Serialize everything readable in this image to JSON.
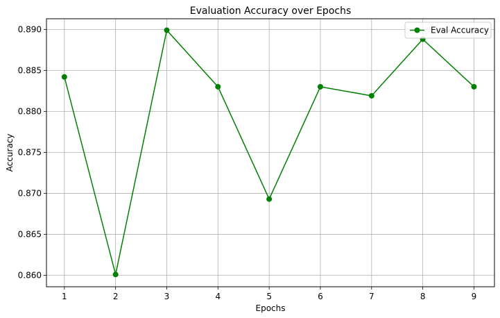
{
  "chart_data": {
    "type": "line",
    "title": "Evaluation Accuracy over Epochs",
    "xlabel": "Epochs",
    "ylabel": "Accuracy",
    "x": [
      1,
      2,
      3,
      4,
      5,
      6,
      7,
      8,
      9
    ],
    "xlim": [
      0.65,
      9.4
    ],
    "ylim": [
      0.8586,
      0.8913
    ],
    "xticks": [
      1,
      2,
      3,
      4,
      5,
      6,
      7,
      8,
      9
    ],
    "yticks": [
      0.86,
      0.865,
      0.87,
      0.875,
      0.88,
      0.885,
      0.89
    ],
    "ytick_labels": [
      "0.860",
      "0.865",
      "0.870",
      "0.875",
      "0.880",
      "0.885",
      "0.890"
    ],
    "grid": true,
    "legend_position": "top-right",
    "series": [
      {
        "name": "Eval Accuracy",
        "color": "#008000",
        "marker": "circle",
        "values": [
          0.8842,
          0.8601,
          0.8899,
          0.883,
          0.8693,
          0.883,
          0.8819,
          0.8888,
          0.883
        ]
      }
    ]
  }
}
